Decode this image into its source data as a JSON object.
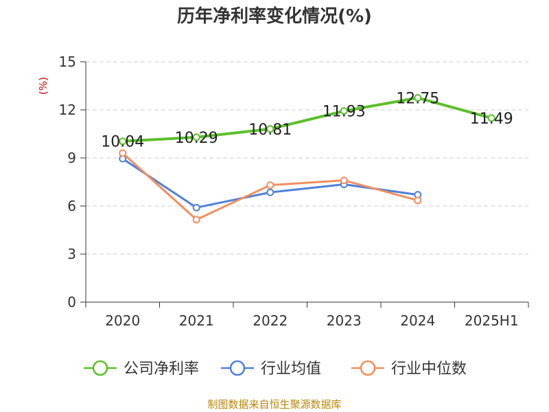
{
  "chart_data": {
    "type": "line",
    "title": "历年净利率变化情况(%)",
    "ylabel": "(%)",
    "ylim": [
      0,
      15
    ],
    "yticks": [
      0,
      3,
      6,
      9,
      12,
      15
    ],
    "categories": [
      "2020",
      "2021",
      "2022",
      "2023",
      "2024",
      "2025H1"
    ],
    "grid": true,
    "legend_position": "bottom",
    "series": [
      {
        "name": "公司净利率",
        "color": "#5cbf2a",
        "values": [
          10.04,
          10.29,
          10.81,
          11.93,
          12.75,
          11.49
        ],
        "labels": [
          "10.04",
          "10.29",
          "10.81",
          "11.93",
          "12.75",
          "11.49"
        ]
      },
      {
        "name": "行业均值",
        "color": "#4f81d8",
        "values": [
          8.95,
          5.9,
          6.85,
          7.35,
          6.7,
          null
        ]
      },
      {
        "name": "行业中位数",
        "color": "#f28e5e",
        "values": [
          9.3,
          5.15,
          7.3,
          7.6,
          6.35,
          null
        ]
      }
    ],
    "source": "制图数据来自恒生聚源数据库"
  }
}
